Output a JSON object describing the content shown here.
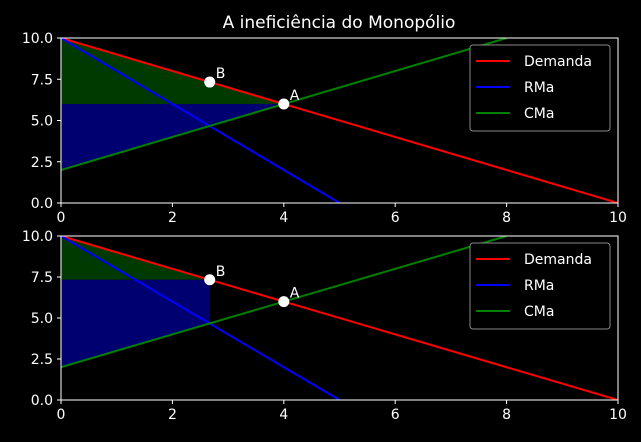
{
  "title": "A ineficiência do Monopólio",
  "colors": {
    "background": "#000000",
    "axis": "#ffffff",
    "demand": "#ff0000",
    "marginal_revenue": "#0000ff",
    "marginal_cost": "#008000",
    "green_fill": "#003a00",
    "blue_fill": "#000070",
    "point": "#ffffff"
  },
  "chart_data": [
    {
      "type": "line",
      "title": "A ineficiência do Monopólio",
      "xlim": [
        0,
        10
      ],
      "ylim": [
        0,
        10
      ],
      "x_ticks": [
        "0",
        "2",
        "4",
        "6",
        "8",
        "10"
      ],
      "y_ticks": [
        "0.0",
        "2.5",
        "5.0",
        "7.5",
        "10.0"
      ],
      "legend_position": "top-right",
      "legend": [
        "Demanda",
        "RMa",
        "CMa"
      ],
      "series": [
        {
          "name": "Demanda",
          "x": [
            0,
            10
          ],
          "y": [
            10,
            0
          ]
        },
        {
          "name": "RMa",
          "x": [
            0,
            5
          ],
          "y": [
            10,
            0
          ]
        },
        {
          "name": "CMa",
          "x": [
            0,
            8
          ],
          "y": [
            2,
            10
          ]
        }
      ],
      "shaded_regions": [
        {
          "color": "green",
          "polygon": [
            [
              0,
              10
            ],
            [
              4,
              6
            ],
            [
              0,
              6
            ]
          ]
        },
        {
          "color": "blue",
          "polygon": [
            [
              0,
              6
            ],
            [
              4,
              6
            ],
            [
              0,
              2
            ]
          ]
        }
      ],
      "points": [
        {
          "label": "A",
          "x": 4,
          "y": 6
        },
        {
          "label": "B",
          "x": 2.67,
          "y": 7.33
        }
      ]
    },
    {
      "type": "line",
      "xlim": [
        0,
        10
      ],
      "ylim": [
        0,
        10
      ],
      "x_ticks": [
        "0",
        "2",
        "4",
        "6",
        "8",
        "10"
      ],
      "y_ticks": [
        "0.0",
        "2.5",
        "5.0",
        "7.5",
        "10.0"
      ],
      "legend_position": "top-right",
      "legend": [
        "Demanda",
        "RMa",
        "CMa"
      ],
      "series": [
        {
          "name": "Demanda",
          "x": [
            0,
            10
          ],
          "y": [
            10,
            0
          ]
        },
        {
          "name": "RMa",
          "x": [
            0,
            5
          ],
          "y": [
            10,
            0
          ]
        },
        {
          "name": "CMa",
          "x": [
            0,
            8
          ],
          "y": [
            2,
            10
          ]
        }
      ],
      "shaded_regions": [
        {
          "color": "green",
          "polygon": [
            [
              0,
              10
            ],
            [
              2.67,
              7.33
            ],
            [
              0,
              7.33
            ]
          ]
        },
        {
          "color": "blue",
          "polygon": [
            [
              0,
              7.33
            ],
            [
              2.67,
              7.33
            ],
            [
              2.67,
              4.67
            ],
            [
              0,
              2
            ]
          ]
        }
      ],
      "points": [
        {
          "label": "A",
          "x": 4,
          "y": 6
        },
        {
          "label": "B",
          "x": 2.67,
          "y": 7.33
        }
      ]
    }
  ]
}
